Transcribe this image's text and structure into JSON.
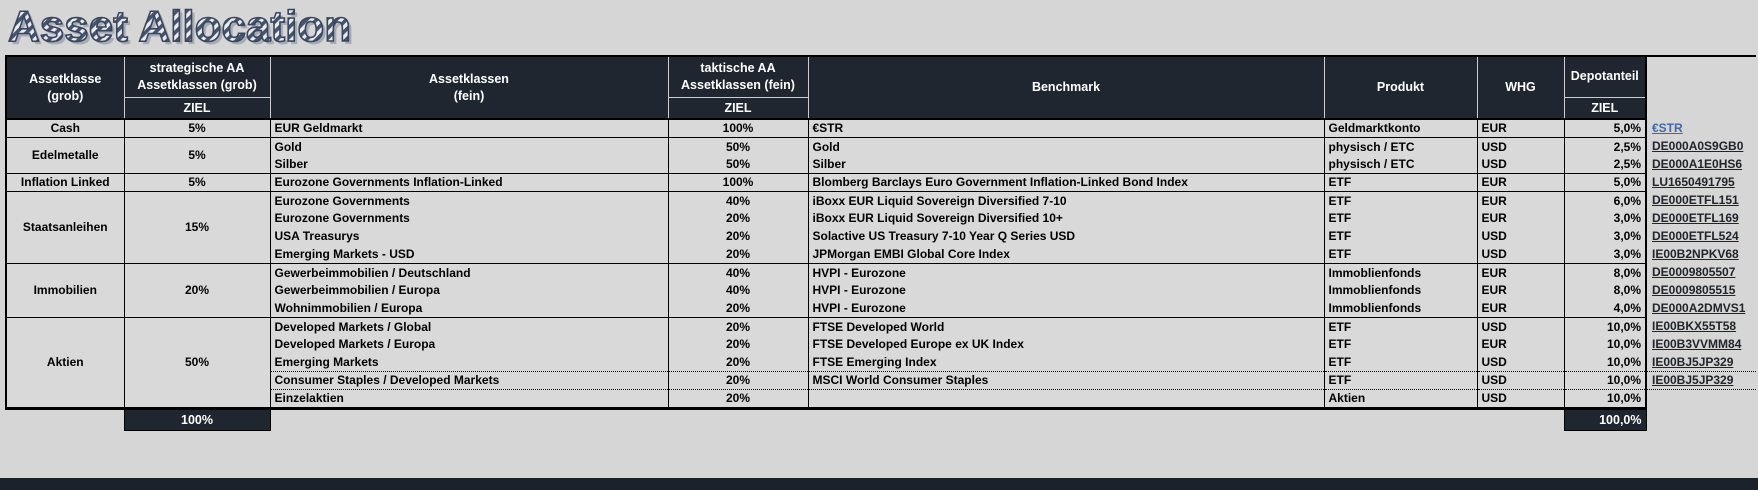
{
  "title": "Asset Allocation",
  "colors": {
    "header_bg": "#1f2630",
    "page_bg": "#d6d6d6",
    "cell_bg": "#d9d9d9",
    "link_dark": "#20242b",
    "link_blue": "#3f69ac",
    "title_stripe_dark": "#46546e",
    "title_stripe_light": "#eaecf0",
    "title_outline": "#39465e",
    "title_shadow": "#949aa6"
  },
  "header": {
    "assetklasse_grob": "Assetklasse\n(grob)",
    "strategische_aa": "strategische AA\nAssetklassen (grob)",
    "assetklassen_fein": "Assetklassen\n(fein)",
    "taktische_aa": "taktische AA\nAssetklassen (fein)",
    "benchmark": "Benchmark",
    "produkt": "Produkt",
    "whg": "WHG",
    "depotanteil": "Depotanteil",
    "ziel": "ZIEL"
  },
  "groups": [
    {
      "name": "Cash",
      "target": "5%",
      "rows": [
        {
          "fein": "EUR Geldmarkt",
          "tziel": "100%",
          "benchmark": "€STR",
          "produkt": "Geldmarktkonto",
          "whg": "EUR",
          "depot": "5,0%",
          "link": "€STR",
          "link_style": "blue"
        }
      ]
    },
    {
      "name": "Edelmetalle",
      "target": "5%",
      "rows": [
        {
          "fein": "Gold",
          "tziel": "50%",
          "benchmark": "Gold",
          "produkt": "physisch / ETC",
          "whg": "USD",
          "depot": "2,5%",
          "link": "DE000A0S9GB0"
        },
        {
          "fein": "Silber",
          "tziel": "50%",
          "benchmark": "Silber",
          "produkt": "physisch / ETC",
          "whg": "USD",
          "depot": "2,5%",
          "link": "DE000A1E0HS6"
        }
      ]
    },
    {
      "name": "Inflation Linked",
      "target": "5%",
      "rows": [
        {
          "fein": "Eurozone Governments Inflation-Linked",
          "tziel": "100%",
          "benchmark": "Blomberg Barclays Euro Government Inflation-Linked Bond Index",
          "produkt": "ETF",
          "whg": "EUR",
          "depot": "5,0%",
          "link": "LU1650491795"
        }
      ]
    },
    {
      "name": "Staatsanleihen",
      "target": "15%",
      "rows": [
        {
          "fein": "Eurozone Governments",
          "tziel": "40%",
          "benchmark": "iBoxx EUR Liquid Sovereign Diversified 7-10",
          "produkt": "ETF",
          "whg": "EUR",
          "depot": "6,0%",
          "link": "DE000ETFL151"
        },
        {
          "fein": "Eurozone Governments",
          "tziel": "20%",
          "benchmark": "iBoxx EUR Liquid Sovereign Diversified 10+",
          "produkt": "ETF",
          "whg": "EUR",
          "depot": "3,0%",
          "link": "DE000ETFL169"
        },
        {
          "fein": "USA Treasurys",
          "tziel": "20%",
          "benchmark": "Solactive US Treasury 7-10 Year Q Series USD",
          "produkt": "ETF",
          "whg": "USD",
          "depot": "3,0%",
          "link": "DE000ETFL524"
        },
        {
          "fein": "Emerging Markets - USD",
          "tziel": "20%",
          "benchmark": "JPMorgan EMBI Global Core Index",
          "produkt": "ETF",
          "whg": "USD",
          "depot": "3,0%",
          "link": "IE00B2NPKV68"
        }
      ]
    },
    {
      "name": "Immobilien",
      "target": "20%",
      "rows": [
        {
          "fein": "Gewerbeimmobilien / Deutschland",
          "tziel": "40%",
          "benchmark": "HVPI - Eurozone",
          "produkt": "Immoblienfonds",
          "whg": "EUR",
          "depot": "8,0%",
          "link": "DE0009805507"
        },
        {
          "fein": "Gewerbeimmobilien / Europa",
          "tziel": "40%",
          "benchmark": "HVPI - Eurozone",
          "produkt": "Immoblienfonds",
          "whg": "EUR",
          "depot": "8,0%",
          "link": "DE0009805515"
        },
        {
          "fein": "Wohnimmobilien / Europa",
          "tziel": "20%",
          "benchmark": "HVPI - Eurozone",
          "produkt": "Immoblienfonds",
          "whg": "EUR",
          "depot": "4,0%",
          "link": "DE000A2DMVS1"
        }
      ]
    },
    {
      "name": "Aktien",
      "target": "50%",
      "rows": [
        {
          "fein": "Developed Markets / Global",
          "tziel": "20%",
          "benchmark": "FTSE Developed World",
          "produkt": "ETF",
          "whg": "USD",
          "depot": "10,0%",
          "link": "IE00BKX55T58"
        },
        {
          "fein": "Developed Markets / Europa",
          "tziel": "20%",
          "benchmark": "FTSE Developed Europe ex UK Index",
          "produkt": "ETF",
          "whg": "EUR",
          "depot": "10,0%",
          "link": "IE00B3VVMM84"
        },
        {
          "fein": "Emerging Markets",
          "tziel": "20%",
          "benchmark": "FTSE Emerging Index",
          "produkt": "ETF",
          "whg": "USD",
          "depot": "10,0%",
          "link": "IE00BJ5JP329"
        },
        {
          "fein": "Consumer Staples / Developed Markets",
          "tziel": "20%",
          "benchmark": "MSCI World Consumer Staples",
          "produkt": "ETF",
          "whg": "USD",
          "depot": "10,0%",
          "link": "IE00BJ5JP329",
          "sep": "dotted"
        },
        {
          "fein": "Einzelaktien",
          "tziel": "20%",
          "benchmark": "",
          "produkt": "Aktien",
          "whg": "USD",
          "depot": "10,0%",
          "link": "",
          "sep": "dotted"
        }
      ]
    }
  ],
  "totals": {
    "strategisch": "100%",
    "depot": "100,0%"
  }
}
